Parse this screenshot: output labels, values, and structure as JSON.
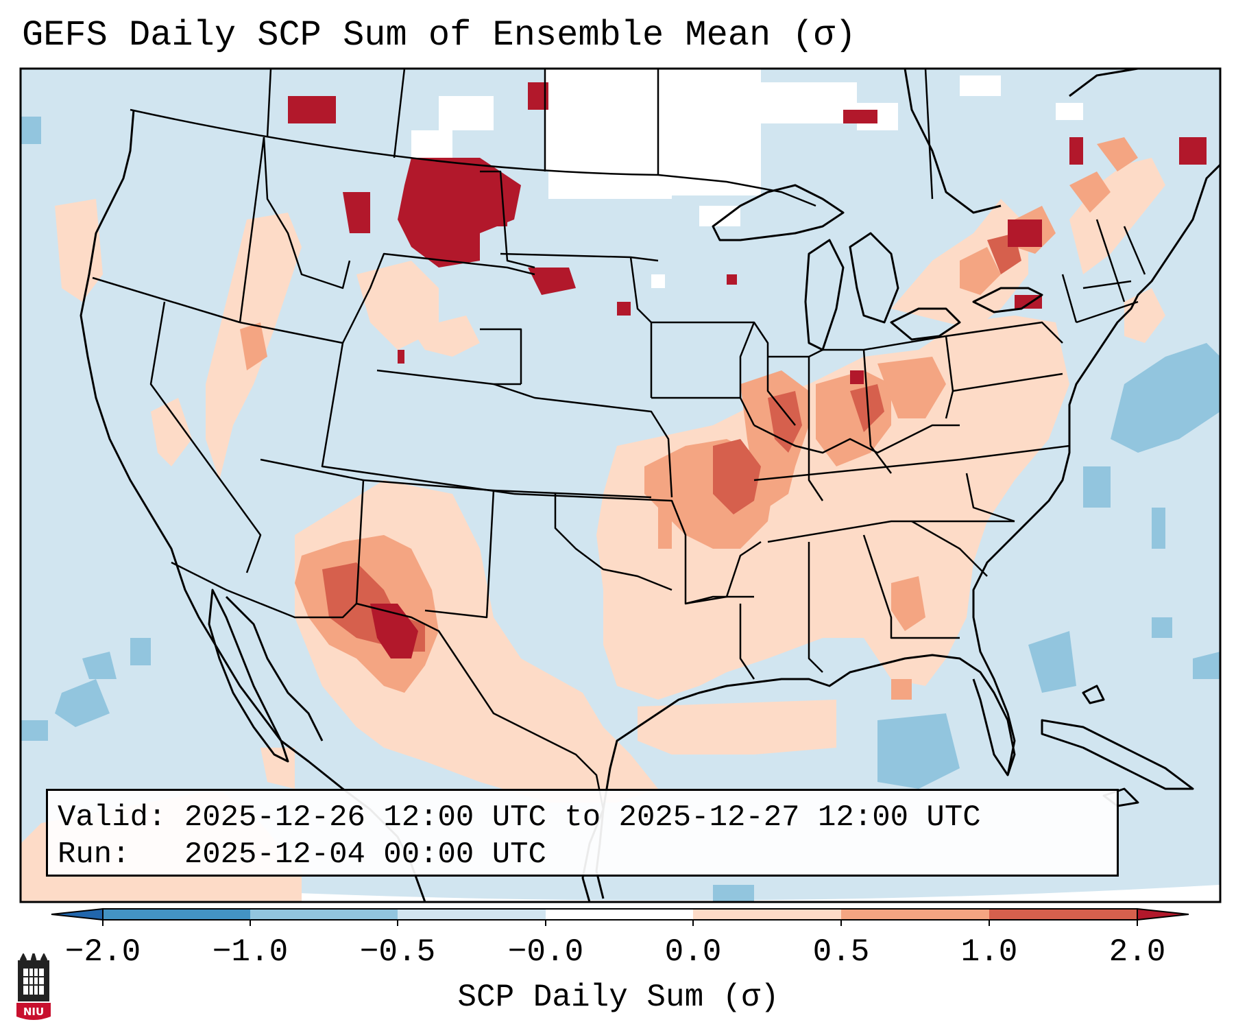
{
  "title": "GEFS Daily SCP Sum of Ensemble Mean (σ)",
  "info": {
    "valid_label": "Valid:",
    "valid_value": "2025-12-26 12:00 UTC to 2025-12-27 12:00 UTC",
    "run_label": "Run:",
    "run_value": "2025-12-04 00:00 UTC"
  },
  "colorbar": {
    "label": "SCP Daily Sum (σ)",
    "ticks": [
      "−2.0",
      "−1.0",
      "−0.5",
      "−0.0",
      "0.0",
      "0.5",
      "1.0",
      "2.0"
    ],
    "bins": [
      {
        "range": "< -2.0",
        "color": "#2166ac"
      },
      {
        "range": "-2.0 to -1.0",
        "color": "#4393c3"
      },
      {
        "range": "-1.0 to -0.5",
        "color": "#92c5de"
      },
      {
        "range": "-0.5 to -0.0",
        "color": "#d1e5f0"
      },
      {
        "range": "-0.0 to 0.0",
        "color": "#ffffff"
      },
      {
        "range": "0.0 to 0.5",
        "color": "#fddbc7"
      },
      {
        "range": "0.5 to 1.0",
        "color": "#f4a582"
      },
      {
        "range": "1.0 to 2.0",
        "color": "#d6604d"
      },
      {
        "range": "> 2.0",
        "color": "#b2182b"
      }
    ]
  },
  "map": {
    "region": "Continental United States",
    "field": "SCP daily sum anomaly",
    "background_color": "#d1e5f0"
  },
  "logo": {
    "text": "NIU",
    "color": "#c8102e"
  }
}
